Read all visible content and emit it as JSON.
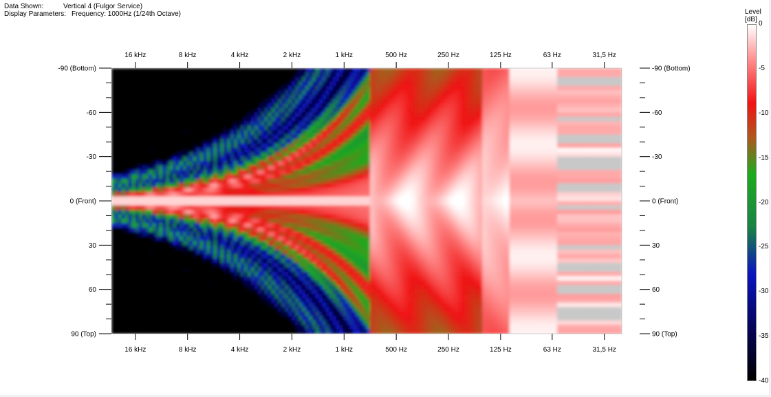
{
  "header": {
    "data_shown_label": "Data Shown:",
    "data_shown_value": "Vertical 4 (Fulgor Service)",
    "display_params_label": "Display Parameters:",
    "display_params_value": "Frequency: 1000Hz (1/24th Octave)"
  },
  "colorbar": {
    "title_line1": "Level",
    "title_line2": "[dB]",
    "ticks": [
      "0",
      "-5",
      "-10",
      "-15",
      "-20",
      "-25",
      "-30",
      "-35",
      "-40"
    ],
    "colors": [
      "#ffffff",
      "#ff0000",
      "#00b000",
      "#0000c0",
      "#000000"
    ]
  },
  "chart_data": {
    "type": "heatmap",
    "x_axis_ticks": [
      "16 kHz",
      "8 kHz",
      "4 kHz",
      "2 kHz",
      "1 kHz",
      "500 Hz",
      "250 Hz",
      "125 Hz",
      "63 Hz",
      "31,5 Hz"
    ],
    "x_axis_freqs_hz": [
      16000,
      8000,
      4000,
      2000,
      1000,
      500,
      250,
      125,
      63,
      31.5
    ],
    "x_scale": "log, decreasing left to right",
    "y_axis_ticks": [
      "-90 (Bottom)",
      "-60",
      "-30",
      "0 (Front)",
      "30",
      "60",
      "90 (Top)"
    ],
    "y_axis_values": [
      -90,
      -60,
      -30,
      0,
      30,
      60,
      90
    ],
    "y_range": [
      -90,
      90
    ],
    "z_range_db": [
      -40,
      0
    ],
    "colormap": "white (0 dB) to red to green to blue to black (-40 dB)"
  }
}
